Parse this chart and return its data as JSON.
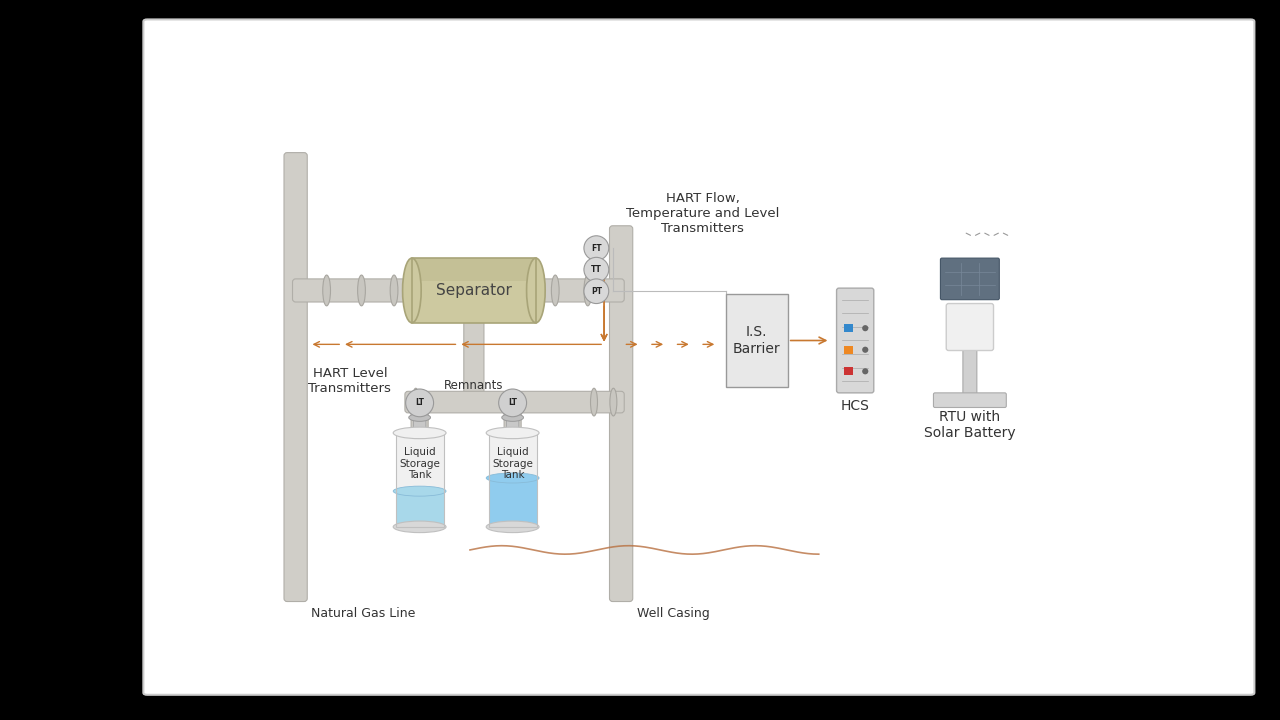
{
  "bg_color": "#ffffff",
  "outer_bg": "#000000",
  "pipe_color": "#d0cec8",
  "pipe_edge": "#b0aea8",
  "separator_body": "#cdc9a0",
  "separator_edge": "#a8a478",
  "separator_dark": "#b8b488",
  "tank_body": "#f0f0f0",
  "tank_edge": "#c0c0c0",
  "liquid_color": "#a8d8ea",
  "liquid_color2": "#90ccee",
  "arrow_color": "#c87830",
  "signal_line": "#bbbbbb",
  "text_color": "#333333",
  "barrier_bg": "#e8e8e8",
  "barrier_edge": "#999999",
  "pipe_thick": 0.2,
  "flange_color": "#c8c6c0",
  "flange_edge": "#a8a6a0",
  "labels": {
    "separator": "Separator",
    "remnants": "Remnants",
    "hart_flow": "HART Flow,\nTemperature and Level\nTransmitters",
    "hart_level": "HART Level\nTransmitters",
    "is_barrier": "I.S.\nBarrier",
    "hcs": "HCS",
    "rtu": "RTU with\nSolar Battery",
    "natural_gas": "Natural Gas Line",
    "well_casing": "Well Casing",
    "ft": "FT",
    "tt": "TT",
    "pt": "PT",
    "lt": "LT"
  }
}
